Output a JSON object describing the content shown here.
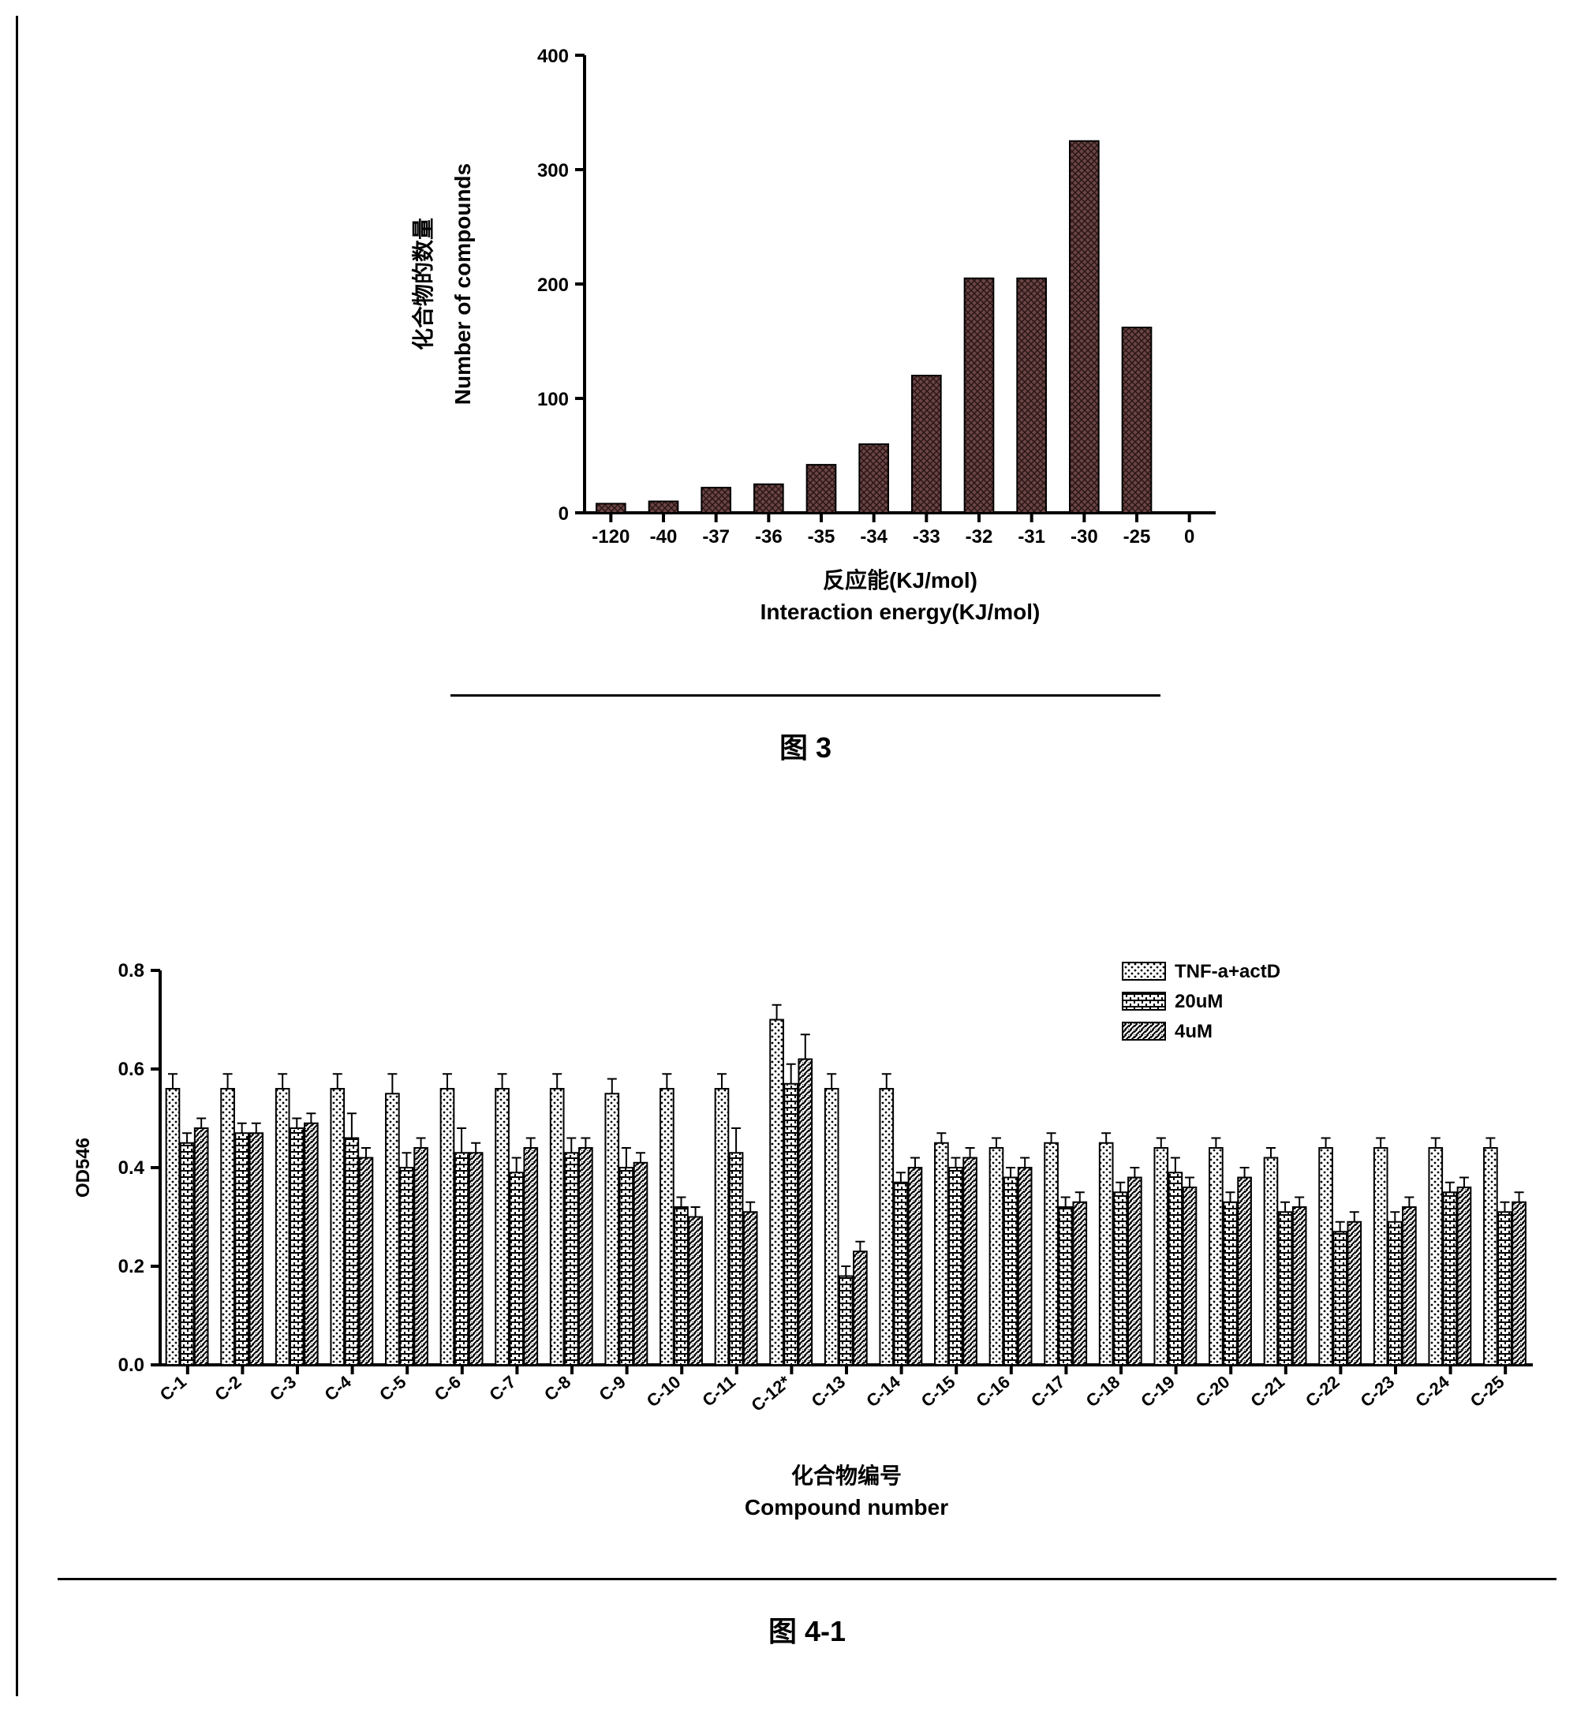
{
  "chart1": {
    "type": "bar",
    "y_label_cn": "化合物的数量",
    "y_label_en": "Number of compounds",
    "x_label_cn": "反应能(KJ/mol)",
    "x_label_en": "Interaction energy(KJ/mol)",
    "ylim": [
      0,
      400
    ],
    "ytick_step": 100,
    "yticks": [
      0,
      100,
      200,
      300,
      400
    ],
    "categories": [
      "-120",
      "-40",
      "-37",
      "-36",
      "-35",
      "-34",
      "-33",
      "-32",
      "-31",
      "-30",
      "-25",
      "0"
    ],
    "values": [
      8,
      10,
      22,
      25,
      42,
      60,
      120,
      205,
      205,
      325,
      162,
      0
    ],
    "bar_color": "#5c3a3a",
    "bar_pattern": "crosshatch",
    "axis_color": "#000000",
    "axis_width": 4,
    "bar_width_ratio": 0.55,
    "background": "#ffffff",
    "caption": "图 3"
  },
  "chart2": {
    "type": "grouped-bar",
    "y_label": "OD546",
    "x_label_cn": "化合物编号",
    "x_label_en": "Compound number",
    "ylim": [
      0.0,
      0.8
    ],
    "ytick_step": 0.2,
    "yticks": [
      "0.0",
      "0.2",
      "0.4",
      "0.6",
      "0.8"
    ],
    "categories": [
      "C-1",
      "C-2",
      "C-3",
      "C-4",
      "C-5",
      "C-6",
      "C-7",
      "C-8",
      "C-9",
      "C-10",
      "C-11",
      "C-12*",
      "C-13",
      "C-14",
      "C-15",
      "C-16",
      "C-17",
      "C-18",
      "C-19",
      "C-20",
      "C-21",
      "C-22",
      "C-23",
      "C-24",
      "C-25"
    ],
    "legend": [
      {
        "label": "TNF-a+actD",
        "pattern": "dots"
      },
      {
        "label": "20uM",
        "pattern": "hbrick"
      },
      {
        "label": "4uM",
        "pattern": "diag"
      }
    ],
    "series": {
      "TNF-a+actD": [
        0.56,
        0.56,
        0.56,
        0.56,
        0.55,
        0.56,
        0.56,
        0.56,
        0.55,
        0.56,
        0.56,
        0.7,
        0.56,
        0.56,
        0.45,
        0.44,
        0.45,
        0.45,
        0.44,
        0.44,
        0.42,
        0.44,
        0.44,
        0.44,
        0.44
      ],
      "20uM": [
        0.45,
        0.47,
        0.48,
        0.46,
        0.4,
        0.43,
        0.39,
        0.43,
        0.4,
        0.32,
        0.43,
        0.57,
        0.18,
        0.37,
        0.4,
        0.38,
        0.32,
        0.35,
        0.39,
        0.33,
        0.31,
        0.27,
        0.29,
        0.35,
        0.31
      ],
      "4uM": [
        0.48,
        0.47,
        0.49,
        0.42,
        0.44,
        0.43,
        0.44,
        0.44,
        0.41,
        0.3,
        0.31,
        0.62,
        0.23,
        0.4,
        0.42,
        0.4,
        0.33,
        0.38,
        0.36,
        0.38,
        0.32,
        0.29,
        0.32,
        0.36,
        0.33
      ]
    },
    "errors": {
      "TNF-a+actD": [
        0.03,
        0.03,
        0.03,
        0.03,
        0.04,
        0.03,
        0.03,
        0.03,
        0.03,
        0.03,
        0.03,
        0.03,
        0.03,
        0.03,
        0.02,
        0.02,
        0.02,
        0.02,
        0.02,
        0.02,
        0.02,
        0.02,
        0.02,
        0.02,
        0.02
      ],
      "20uM": [
        0.02,
        0.02,
        0.02,
        0.05,
        0.03,
        0.05,
        0.03,
        0.03,
        0.04,
        0.02,
        0.05,
        0.04,
        0.02,
        0.02,
        0.02,
        0.02,
        0.02,
        0.02,
        0.03,
        0.02,
        0.02,
        0.02,
        0.02,
        0.02,
        0.02
      ],
      "4uM": [
        0.02,
        0.02,
        0.02,
        0.02,
        0.02,
        0.02,
        0.02,
        0.02,
        0.02,
        0.02,
        0.02,
        0.05,
        0.02,
        0.02,
        0.02,
        0.02,
        0.02,
        0.02,
        0.02,
        0.02,
        0.02,
        0.02,
        0.02,
        0.02,
        0.02
      ]
    },
    "axis_color": "#000000",
    "axis_width": 4,
    "bar_outline": "#000000",
    "bar_outline_width": 2,
    "group_width_ratio": 0.78,
    "background": "#ffffff",
    "caption": "图 4-1"
  }
}
